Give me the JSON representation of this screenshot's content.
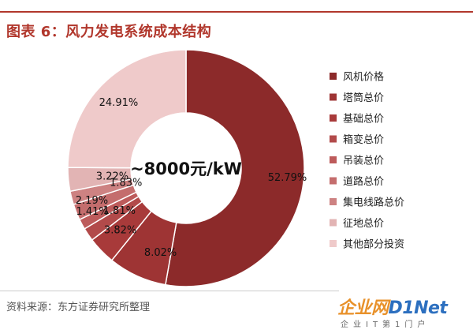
{
  "header": {
    "title": "图表 6：风力发电系统成本结构"
  },
  "footer": {
    "source": "资料来源：东方证券研究所整理"
  },
  "watermark": {
    "logo_a": "企业网",
    "logo_b": "D1Net",
    "sub": "企业IT第1门户"
  },
  "chart_data": {
    "type": "pie",
    "variant": "donut",
    "center_label": "~8000元/kW",
    "legend_placement": "right",
    "slices": [
      {
        "label": "风机价格",
        "value": 52.79,
        "display": "52.79%",
        "color": "#8c2a2a"
      },
      {
        "label": "塔筒总价",
        "value": 8.02,
        "display": "8.02%",
        "color": "#9e3434"
      },
      {
        "label": "基础总价",
        "value": 3.82,
        "display": "3.82%",
        "color": "#a83a3a"
      },
      {
        "label": "箱变总价",
        "value": 1.81,
        "display": "1.81%",
        "color": "#b24a4a"
      },
      {
        "label": "吊装总价",
        "value": 1.41,
        "display": "1.41%",
        "color": "#bd5b5b"
      },
      {
        "label": "道路总价",
        "value": 2.19,
        "display": "2.19%",
        "color": "#c46d6d"
      },
      {
        "label": "集电线路总价",
        "value": 1.83,
        "display": "1.83%",
        "color": "#cd8282"
      },
      {
        "label": "征地总价",
        "value": 3.22,
        "display": "3.22%",
        "color": "#e2b4b4"
      },
      {
        "label": "其他部分投资",
        "value": 24.91,
        "display": "24.91%",
        "color": "#efcaca"
      }
    ]
  }
}
